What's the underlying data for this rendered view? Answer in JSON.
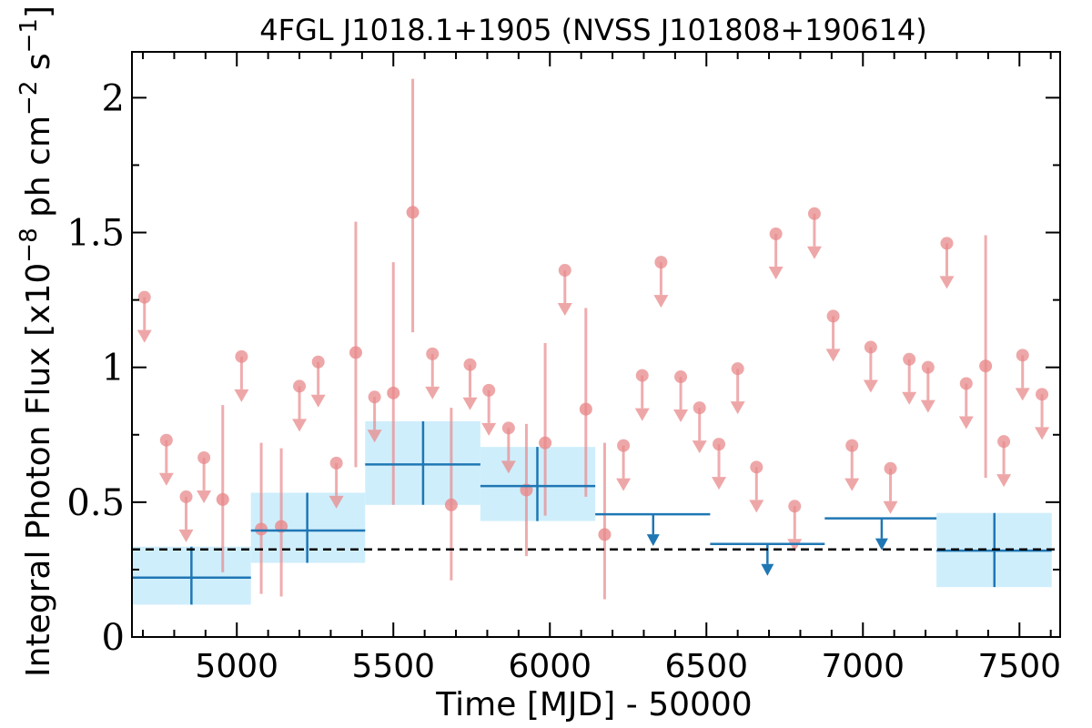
{
  "chart_data": {
    "type": "scatter",
    "title": "4FGL J1018.1+1905 (NVSS J101808+190614)",
    "xlabel": "Time [MJD] - 50000",
    "ylabel": "Integral Photon Flux [x10",
    "ylabel_sup1": "−8",
    "ylabel_mid": " ph cm",
    "ylabel_sup2": "−2",
    "ylabel_mid2": " s",
    "ylabel_sup3": "−1",
    "ylabel_end": "]",
    "xlim": [
      4665,
      7630
    ],
    "ylim": [
      0,
      2.17
    ],
    "xticks": [
      5000,
      5500,
      6000,
      6500,
      7000,
      7500
    ],
    "yticks": [
      0,
      0.5,
      1,
      1.5,
      2
    ],
    "ytick_labels": [
      "0",
      "0.5",
      "1",
      "1.5",
      "2"
    ],
    "reference_line_y": 0.325,
    "colors": {
      "fine": "#e8898b",
      "coarse": "#1f77b4",
      "coarse_band": "#cfeefc",
      "reference": "#000000"
    },
    "series": [
      {
        "marker": "point",
        "points": [
          {
            "x": 4955,
            "y": 0.51,
            "lo": 0.24,
            "hi": 0.86
          },
          {
            "x": 5078,
            "y": 0.4,
            "lo": 0.16,
            "hi": 0.72
          },
          {
            "x": 5142,
            "y": 0.41,
            "lo": 0.15,
            "hi": 0.7
          },
          {
            "x": 5380,
            "y": 1.055,
            "lo": 0.63,
            "hi": 1.54
          },
          {
            "x": 5500,
            "y": 0.905,
            "lo": 0.49,
            "hi": 1.39
          },
          {
            "x": 5562,
            "y": 1.575,
            "lo": 1.13,
            "hi": 2.07
          },
          {
            "x": 5685,
            "y": 0.49,
            "lo": 0.21,
            "hi": 0.85
          },
          {
            "x": 5925,
            "y": 0.545,
            "lo": 0.3,
            "hi": 0.79
          },
          {
            "x": 5985,
            "y": 0.72,
            "lo": 0.45,
            "hi": 1.09
          },
          {
            "x": 6115,
            "y": 0.845,
            "lo": 0.52,
            "hi": 1.22
          },
          {
            "x": 6175,
            "y": 0.38,
            "lo": 0.14,
            "hi": 0.72
          },
          {
            "x": 7392,
            "y": 1.005,
            "lo": 0.59,
            "hi": 1.49
          }
        ],
        "upper_limits": [
          {
            "x": 4705,
            "y": 1.26
          },
          {
            "x": 4775,
            "y": 0.73
          },
          {
            "x": 4838,
            "y": 0.52
          },
          {
            "x": 4895,
            "y": 0.665
          },
          {
            "x": 5015,
            "y": 1.04
          },
          {
            "x": 5200,
            "y": 0.93
          },
          {
            "x": 5260,
            "y": 1.02
          },
          {
            "x": 5318,
            "y": 0.645
          },
          {
            "x": 5440,
            "y": 0.89
          },
          {
            "x": 5625,
            "y": 1.05
          },
          {
            "x": 5745,
            "y": 1.01
          },
          {
            "x": 5805,
            "y": 0.915
          },
          {
            "x": 5868,
            "y": 0.775
          },
          {
            "x": 6048,
            "y": 1.36
          },
          {
            "x": 6235,
            "y": 0.71
          },
          {
            "x": 6295,
            "y": 0.97
          },
          {
            "x": 6355,
            "y": 1.39
          },
          {
            "x": 6418,
            "y": 0.965
          },
          {
            "x": 6478,
            "y": 0.85
          },
          {
            "x": 6540,
            "y": 0.715
          },
          {
            "x": 6600,
            "y": 0.995
          },
          {
            "x": 6660,
            "y": 0.63
          },
          {
            "x": 6722,
            "y": 1.495
          },
          {
            "x": 6782,
            "y": 0.485
          },
          {
            "x": 6845,
            "y": 1.57
          },
          {
            "x": 6905,
            "y": 1.19
          },
          {
            "x": 6965,
            "y": 0.71
          },
          {
            "x": 7025,
            "y": 1.075
          },
          {
            "x": 7088,
            "y": 0.625
          },
          {
            "x": 7148,
            "y": 1.03
          },
          {
            "x": 7208,
            "y": 1.0
          },
          {
            "x": 7268,
            "y": 1.46
          },
          {
            "x": 7330,
            "y": 0.94
          },
          {
            "x": 7450,
            "y": 0.725
          },
          {
            "x": 7510,
            "y": 1.045
          },
          {
            "x": 7572,
            "y": 0.9
          }
        ]
      },
      {
        "marker": "cross",
        "points": [
          {
            "x": 4855,
            "x_lo": 4665,
            "x_hi": 5045,
            "y": 0.22,
            "lo": 0.12,
            "hi": 0.335
          },
          {
            "x": 5225,
            "x_lo": 5045,
            "x_hi": 5410,
            "y": 0.395,
            "lo": 0.275,
            "hi": 0.535
          },
          {
            "x": 5595,
            "x_lo": 5410,
            "x_hi": 5778,
            "y": 0.64,
            "lo": 0.49,
            "hi": 0.8
          },
          {
            "x": 5960,
            "x_lo": 5778,
            "x_hi": 6145,
            "y": 0.56,
            "lo": 0.43,
            "hi": 0.705
          },
          {
            "x": 7420,
            "x_lo": 7235,
            "x_hi": 7603,
            "y": 0.32,
            "lo": 0.185,
            "hi": 0.46
          }
        ],
        "upper_limits": [
          {
            "x": 6330,
            "x_lo": 6145,
            "x_hi": 6512,
            "y": 0.455
          },
          {
            "x": 6695,
            "x_lo": 6512,
            "x_hi": 6878,
            "y": 0.345
          },
          {
            "x": 7060,
            "x_lo": 6878,
            "x_hi": 7235,
            "y": 0.44
          }
        ]
      }
    ]
  }
}
